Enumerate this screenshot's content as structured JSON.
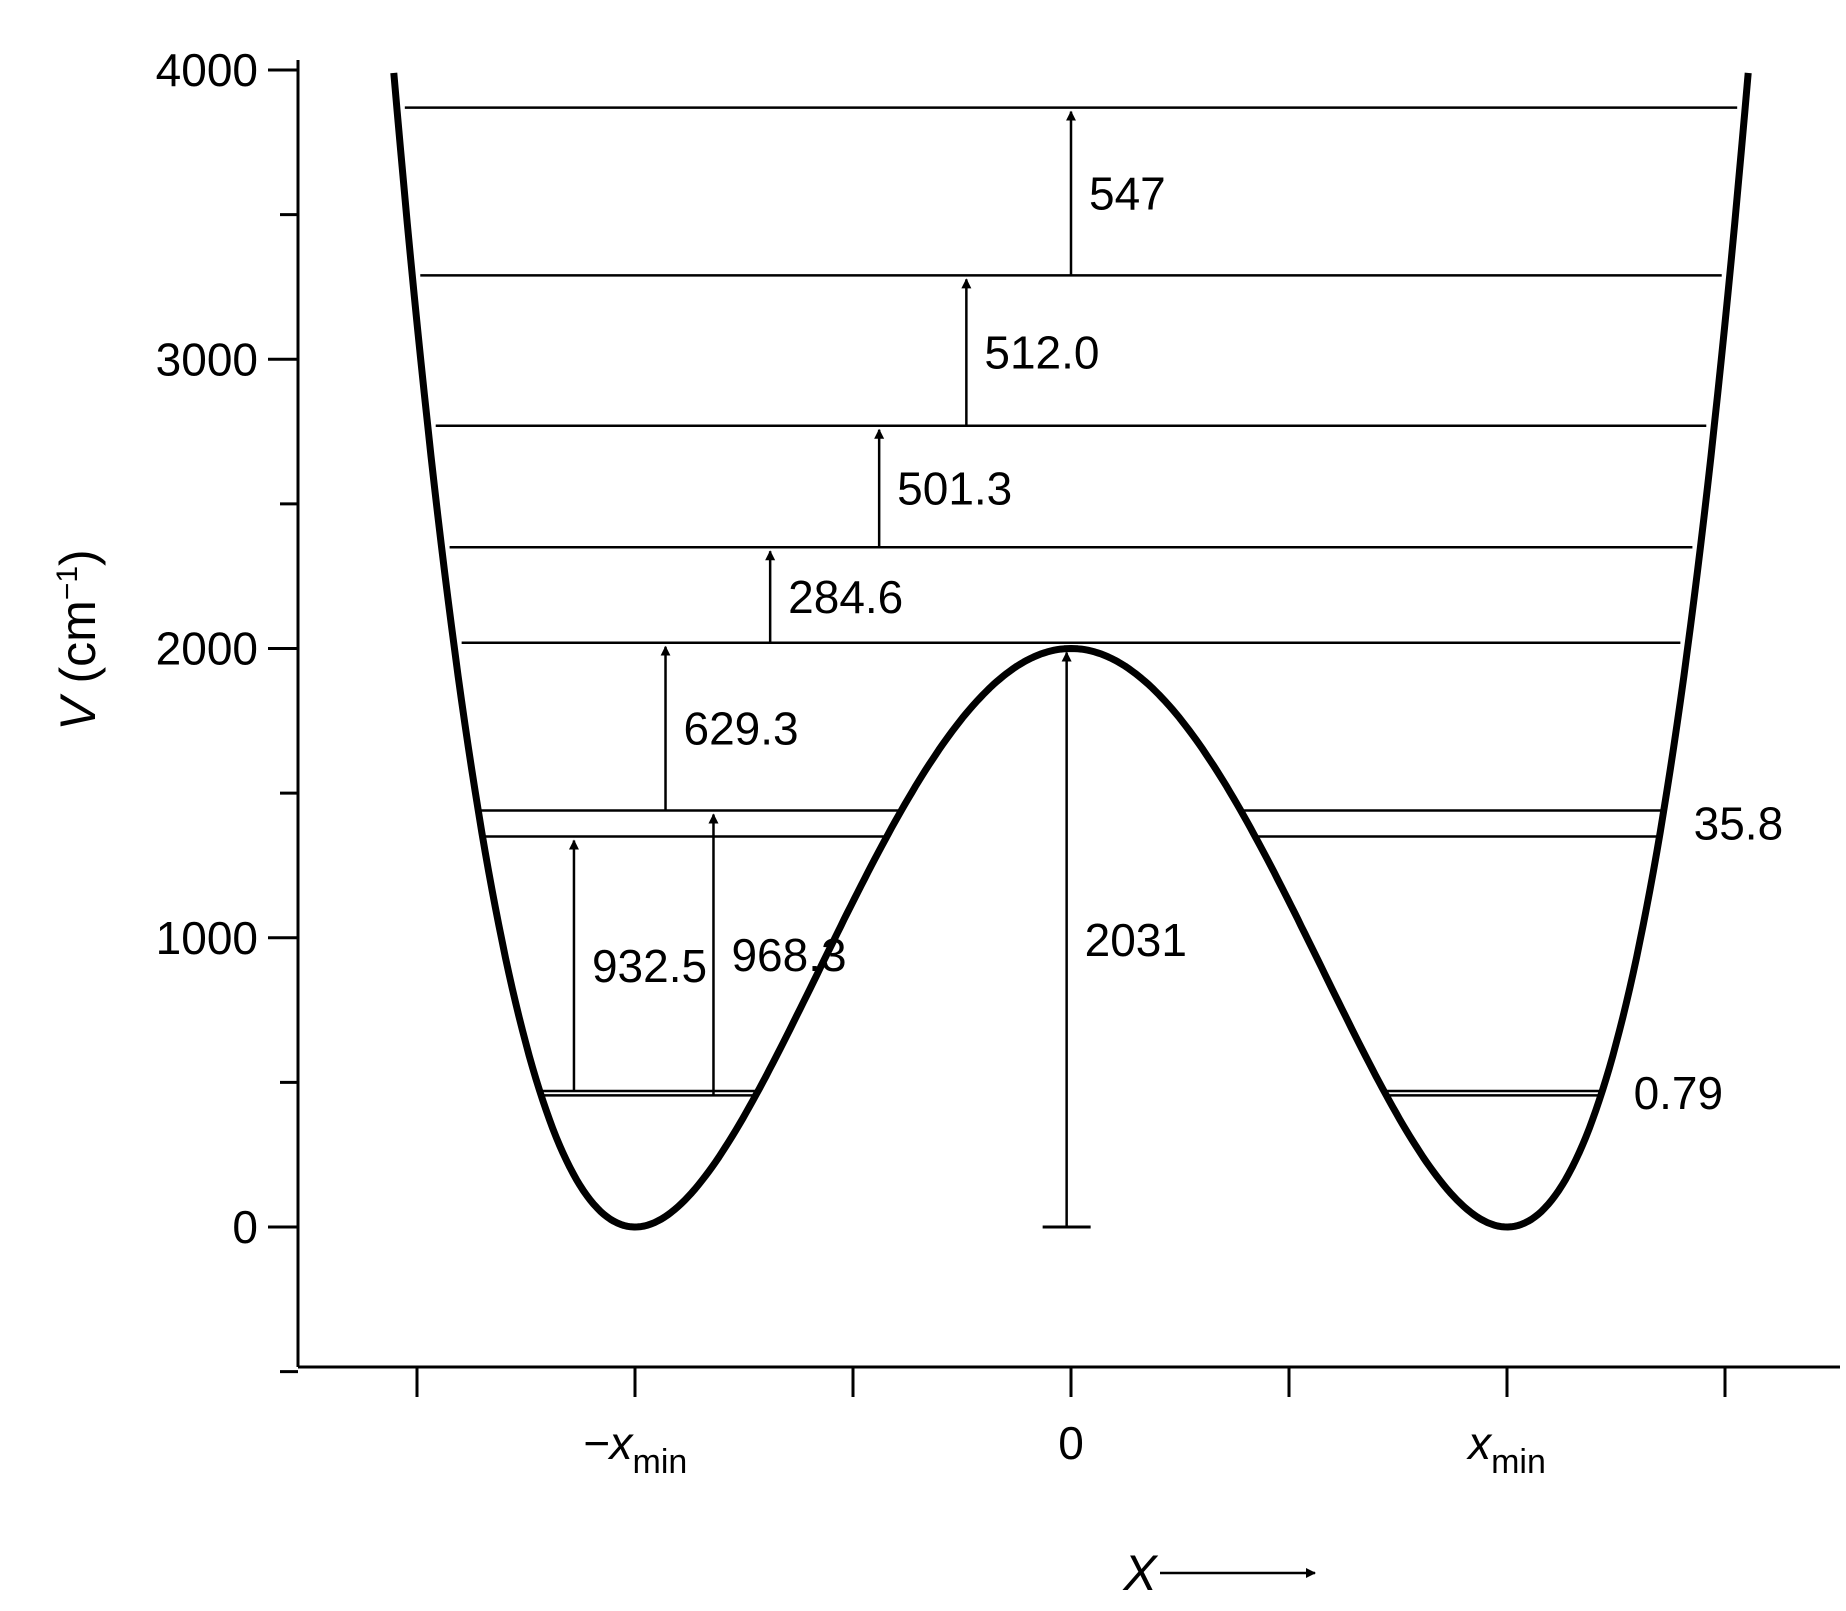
{
  "chart_data": {
    "type": "line",
    "title": "",
    "xlabel": "X",
    "ylabel": {
      "prefix": "V",
      "unit_base": "(cm",
      "unit_exp": "−1",
      "unit_close": ")"
    },
    "ylim": [
      -500,
      4000
    ],
    "xlim": [
      -1.5,
      1.5
    ],
    "y_ticks": [
      0,
      1000,
      2000,
      3000,
      4000
    ],
    "y_tick_labels": [
      "0",
      "1000",
      "2000",
      "3000",
      "4000"
    ],
    "x_ticks": [
      -1.5,
      -1,
      -0.5,
      0,
      0.5,
      1,
      1.5
    ],
    "x_tick_labels": [
      {
        "x": -1,
        "base": "−x",
        "sub": "min"
      },
      {
        "x": 0,
        "base": "0",
        "sub": ""
      },
      {
        "x": 1,
        "base": "x",
        "sub": "min"
      }
    ],
    "grid": false,
    "potential": {
      "name": "",
      "barrier_height": 2000,
      "x_min": 1,
      "wall_top": 3990
    },
    "energy_levels": [
      {
        "energy": 455,
        "split": "lower"
      },
      {
        "energy": 470,
        "split": "upper"
      },
      {
        "energy": 1350,
        "split": "lower"
      },
      {
        "energy": 1440,
        "split": "upper"
      },
      {
        "energy": 2020,
        "split": "none"
      },
      {
        "energy": 2350,
        "split": "none"
      },
      {
        "energy": 2770,
        "split": "none"
      },
      {
        "energy": 3290,
        "split": "none"
      },
      {
        "energy": 3870,
        "split": "none"
      }
    ],
    "transitions": [
      {
        "label": "932.5",
        "from": 470,
        "to": 1350,
        "x": -1.14
      },
      {
        "label": "968.3",
        "from": 455,
        "to": 1440,
        "x": -0.82
      },
      {
        "label": "629.3",
        "from": 1440,
        "to": 2020,
        "x": -0.93
      },
      {
        "label": "284.6",
        "from": 2020,
        "to": 2350,
        "x": -0.69
      },
      {
        "label": "501.3",
        "from": 2350,
        "to": 2770,
        "x": -0.44
      },
      {
        "label": "512.0",
        "from": 2770,
        "to": 3290,
        "x": -0.24
      },
      {
        "label": "547",
        "from": 3290,
        "to": 3870,
        "x": 0.0
      },
      {
        "label": "2031",
        "from": 0,
        "to": 2000,
        "x": -0.01
      }
    ],
    "splitting_labels": [
      {
        "label": "35.8",
        "level": "pair-2"
      },
      {
        "label": "0.79",
        "level": "pair-1"
      }
    ]
  }
}
